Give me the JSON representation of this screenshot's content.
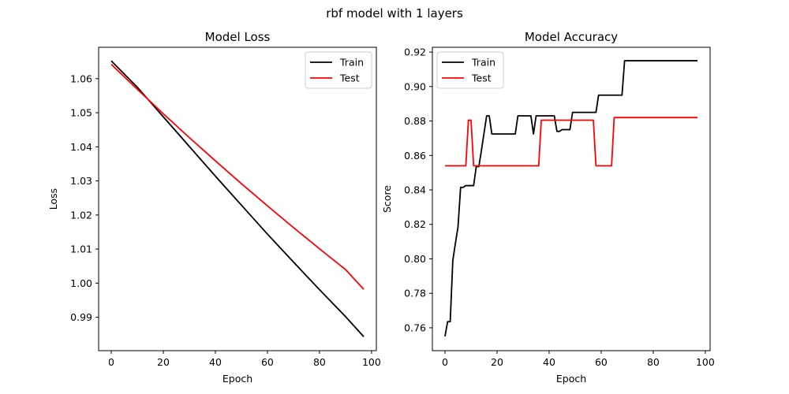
{
  "figure": {
    "suptitle": "rbf model with 1 layers"
  },
  "colors": {
    "train": "#000000",
    "test": "#ff0000"
  },
  "chart_data": [
    {
      "type": "line",
      "title": "Model Loss",
      "xlabel": "Epoch",
      "ylabel": "Loss",
      "xlim": [
        -4.85,
        101.85
      ],
      "ylim": [
        0.9802,
        1.0692
      ],
      "xticks": [
        0,
        20,
        40,
        60,
        80,
        100
      ],
      "yticks": [
        0.99,
        1.0,
        1.01,
        1.02,
        1.03,
        1.04,
        1.05,
        1.06
      ],
      "ytick_decimals": 2,
      "legend": {
        "placement": "upper right",
        "entries": [
          "Train",
          "Test"
        ]
      },
      "series": [
        {
          "name": "Train",
          "color": "#000000",
          "points": [
            [
              0,
              1.0652
            ],
            [
              10,
              1.0575
            ],
            [
              20,
              1.0488
            ],
            [
              30,
              1.0401
            ],
            [
              40,
              1.0314
            ],
            [
              50,
              1.0229
            ],
            [
              60,
              1.0144
            ],
            [
              70,
              1.0062
            ],
            [
              80,
              0.9981
            ],
            [
              90,
              0.9902
            ],
            [
              97,
              0.9843
            ]
          ]
        },
        {
          "name": "Test",
          "color": "#ff0000",
          "points": [
            [
              0,
              1.0642
            ],
            [
              10,
              1.0569
            ],
            [
              20,
              1.0497
            ],
            [
              30,
              1.0427
            ],
            [
              40,
              1.0359
            ],
            [
              50,
              1.0292
            ],
            [
              60,
              1.0227
            ],
            [
              70,
              1.0163
            ],
            [
              80,
              1.0101
            ],
            [
              90,
              1.004
            ],
            [
              97,
              0.9982
            ]
          ]
        }
      ]
    },
    {
      "type": "line",
      "title": "Model Accuracy",
      "xlabel": "Epoch",
      "ylabel": "Score",
      "xlim": [
        -4.85,
        101.85
      ],
      "ylim": [
        0.7467,
        0.9228
      ],
      "xticks": [
        0,
        20,
        40,
        60,
        80,
        100
      ],
      "yticks": [
        0.76,
        0.78,
        0.8,
        0.82,
        0.84,
        0.86,
        0.88,
        0.9,
        0.92
      ],
      "ytick_decimals": 2,
      "legend": {
        "placement": "upper left",
        "entries": [
          "Train",
          "Test"
        ]
      },
      "series": [
        {
          "name": "Train",
          "color": "#000000",
          "points": [
            [
              0,
              0.755
            ],
            [
              1,
              0.7635
            ],
            [
              2,
              0.7635
            ],
            [
              3,
              0.799
            ],
            [
              4,
              0.809
            ],
            [
              5,
              0.8185
            ],
            [
              6,
              0.8415
            ],
            [
              7,
              0.8415
            ],
            [
              8,
              0.8425
            ],
            [
              9,
              0.8425
            ],
            [
              10,
              0.8425
            ],
            [
              11,
              0.8425
            ],
            [
              12,
              0.8535
            ],
            [
              13,
              0.8535
            ],
            [
              14,
              0.863
            ],
            [
              15,
              0.873
            ],
            [
              16,
              0.883
            ],
            [
              17,
              0.883
            ],
            [
              18,
              0.8725
            ],
            [
              19,
              0.8725
            ],
            [
              20,
              0.8725
            ],
            [
              25,
              0.8725
            ],
            [
              27,
              0.8725
            ],
            [
              28,
              0.883
            ],
            [
              30,
              0.883
            ],
            [
              33,
              0.883
            ],
            [
              34,
              0.8725
            ],
            [
              35,
              0.883
            ],
            [
              37,
              0.883
            ],
            [
              42,
              0.883
            ],
            [
              43,
              0.874
            ],
            [
              44,
              0.874
            ],
            [
              45,
              0.875
            ],
            [
              48,
              0.875
            ],
            [
              49,
              0.885
            ],
            [
              51,
              0.885
            ],
            [
              58,
              0.885
            ],
            [
              59,
              0.895
            ],
            [
              60,
              0.895
            ],
            [
              68,
              0.895
            ],
            [
              69,
              0.915
            ],
            [
              72,
              0.915
            ],
            [
              80,
              0.915
            ],
            [
              90,
              0.915
            ],
            [
              97,
              0.915
            ]
          ]
        },
        {
          "name": "Test",
          "color": "#ff0000",
          "points": [
            [
              0,
              0.854
            ],
            [
              1,
              0.854
            ],
            [
              8,
              0.854
            ],
            [
              9,
              0.8805
            ],
            [
              10,
              0.8805
            ],
            [
              11,
              0.854
            ],
            [
              12,
              0.854
            ],
            [
              20,
              0.854
            ],
            [
              30,
              0.854
            ],
            [
              36,
              0.854
            ],
            [
              37,
              0.8805
            ],
            [
              40,
              0.8805
            ],
            [
              50,
              0.8805
            ],
            [
              57,
              0.8805
            ],
            [
              58,
              0.854
            ],
            [
              59,
              0.854
            ],
            [
              64,
              0.854
            ],
            [
              65,
              0.882
            ],
            [
              70,
              0.882
            ],
            [
              80,
              0.882
            ],
            [
              90,
              0.882
            ],
            [
              97,
              0.882
            ]
          ]
        }
      ]
    }
  ]
}
